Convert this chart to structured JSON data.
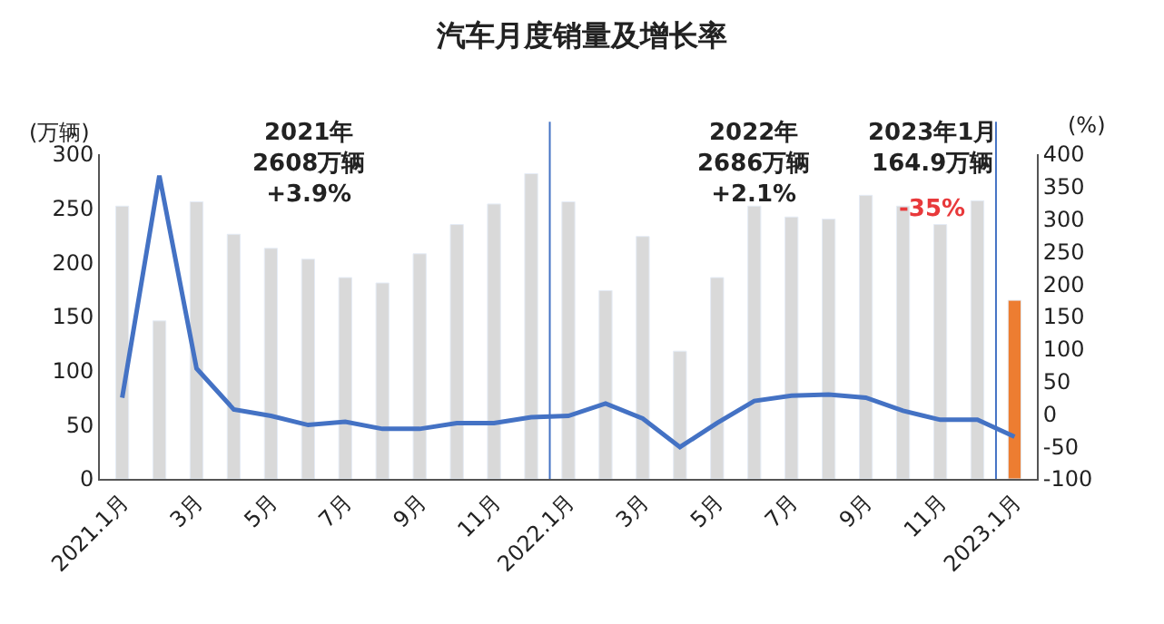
{
  "chart_data": {
    "type": "bar",
    "title": "汽车月度销量及增长率",
    "ylabel": "(万辆)",
    "y2label": "(%)",
    "categories": [
      "2021.1月",
      null,
      "3月",
      null,
      "5月",
      null,
      "7月",
      null,
      "9月",
      null,
      "11月",
      null,
      "2022.1月",
      null,
      "3月",
      null,
      "5月",
      null,
      "7月",
      null,
      "9月",
      null,
      "11月",
      null,
      "2023.1月"
    ],
    "series": [
      {
        "colors": [
          "#d9d9d9",
          "#d9d9d9",
          "#d9d9d9",
          "#d9d9d9",
          "#d9d9d9",
          "#d9d9d9",
          "#d9d9d9",
          "#d9d9d9",
          "#d9d9d9",
          "#d9d9d9",
          "#d9d9d9",
          "#d9d9d9",
          "#d9d9d9",
          "#d9d9d9",
          "#d9d9d9",
          "#d9d9d9",
          "#d9d9d9",
          "#d9d9d9",
          "#d9d9d9",
          "#d9d9d9",
          "#d9d9d9",
          "#d9d9d9",
          "#d9d9d9",
          "#d9d9d9",
          "#ed7d31"
        ],
        "values": [
          252,
          146,
          256,
          226,
          213,
          203,
          186,
          181,
          208,
          235,
          254,
          282,
          256,
          174,
          224,
          118,
          186,
          252,
          242,
          240,
          262,
          252,
          235,
          257,
          165
        ]
      },
      {
        "type": "line",
        "axis": "y2",
        "color": "#4472c4",
        "values": [
          25,
          367,
          70,
          7,
          -3,
          -17,
          -12,
          -23,
          -23,
          -14,
          -14,
          -5,
          -3,
          16,
          -7,
          -51,
          -14,
          20,
          28,
          30,
          25,
          5,
          -9,
          -9,
          -35
        ]
      }
    ],
    "ylim": [
      0,
      300
    ],
    "yticks": [
      0,
      50,
      100,
      150,
      200,
      250,
      300
    ],
    "y2lim": [
      -100,
      400
    ],
    "y2ticks": [
      -100,
      -50,
      0,
      50,
      100,
      150,
      200,
      250,
      300,
      350,
      400
    ],
    "annotations": [
      "2021年\n2608万辆\n+3.9%",
      "2022年\n2686万辆\n+2.1%",
      "2023年1月\n164.9万辆",
      "-35%"
    ],
    "marker": "none",
    "line_style": "solid"
  }
}
